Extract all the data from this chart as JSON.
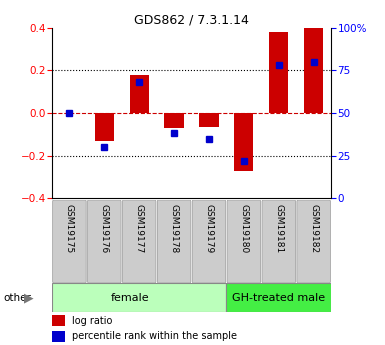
{
  "title": "GDS862 / 7.3.1.14",
  "samples": [
    "GSM19175",
    "GSM19176",
    "GSM19177",
    "GSM19178",
    "GSM19179",
    "GSM19180",
    "GSM19181",
    "GSM19182"
  ],
  "log_ratio": [
    0.0,
    -0.13,
    0.18,
    -0.07,
    -0.065,
    -0.27,
    0.38,
    0.4
  ],
  "percentile_rank": [
    50,
    30,
    68,
    38,
    35,
    22,
    78,
    80
  ],
  "ylim_left": [
    -0.4,
    0.4
  ],
  "ylim_right": [
    0,
    100
  ],
  "yticks_left": [
    -0.4,
    -0.2,
    0.0,
    0.2,
    0.4
  ],
  "yticks_right": [
    0,
    25,
    50,
    75,
    100
  ],
  "yticklabels_right": [
    "0",
    "25",
    "50",
    "75",
    "100%"
  ],
  "bar_color": "#cc0000",
  "dot_color": "#0000cc",
  "dashed_zero_color": "#cc0000",
  "group1_label": "female",
  "group2_label": "GH-treated male",
  "group1_count": 5,
  "group2_count": 3,
  "group1_color": "#bbffbb",
  "group2_color": "#44ee44",
  "other_label": "other",
  "legend_logratio": "log ratio",
  "legend_percentile": "percentile rank within the sample",
  "bar_width": 0.55,
  "dot_size": 5,
  "tick_box_color": "#cccccc",
  "tick_box_edge_color": "#999999"
}
